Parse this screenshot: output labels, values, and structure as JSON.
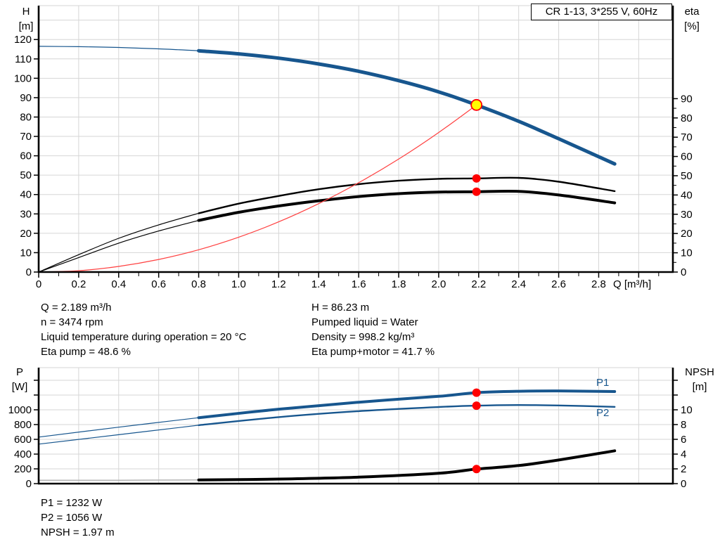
{
  "title_box": "CR 1-13, 3*255 V, 60Hz",
  "labels": {
    "p1": "P1",
    "p2": "P2",
    "q_axis": "Q [m³/h]"
  },
  "axis_titles": {
    "h1": "H",
    "h2": "[m]",
    "eta1": "eta",
    "eta2": "[%]",
    "p1": "P",
    "p2": "[W]",
    "npsh1": "NPSH",
    "npsh2": "[m]"
  },
  "info_top": {
    "left": [
      "Q = 2.189 m³/h",
      "n = 3474 rpm",
      "Liquid temperature during operation = 20 °C",
      "Eta pump = 48.6 %"
    ],
    "right": [
      "H = 86.23 m",
      "Pumped liquid = Water",
      "Density = 998.2 kg/m³",
      "Eta pump+motor = 41.7 %"
    ]
  },
  "info_bottom": [
    "P1 = 1232 W",
    "P2 = 1056 W",
    "NPSH = 1.97 m"
  ],
  "colors": {
    "curve_blue": "#17568e",
    "system_red": "#ff4040",
    "marker_red": "#ff0000",
    "duty_yellow": "#ffff00",
    "curve_black": "#000000",
    "npsh_gray": "#b3b3b3",
    "grid": "#d6d6d6",
    "axis": "#000000"
  },
  "chart_data": [
    {
      "id": "hq",
      "type": "line",
      "title": "CR 1-13, 3*255 V, 60Hz",
      "xlabel": "Q [m³/h]",
      "xlim": [
        0,
        3.171
      ],
      "x_major_step": 0.2,
      "x_minor_step": 0.1,
      "x_grid_max": 3.0,
      "x_tick_max": 3.0,
      "x_minor_max": 3.1,
      "x_labels": [
        [
          0,
          "0"
        ],
        [
          0.2,
          "0.2"
        ],
        [
          0.4,
          "0.4"
        ],
        [
          0.6,
          "0.6"
        ],
        [
          0.8,
          "0.8"
        ],
        [
          1,
          "1.0"
        ],
        [
          1.2,
          "1.2"
        ],
        [
          1.4,
          "1.4"
        ],
        [
          1.6,
          "1.6"
        ],
        [
          1.8,
          "1.8"
        ],
        [
          2,
          "2.0"
        ],
        [
          2.2,
          "2.2"
        ],
        [
          2.4,
          "2.4"
        ],
        [
          2.6,
          "2.6"
        ],
        [
          2.8,
          "2.8"
        ]
      ],
      "left_axis": {
        "title_lines": [
          "H",
          "[m]"
        ],
        "lim": [
          0,
          137.5
        ],
        "grid_step": 10,
        "grid_max": 130,
        "ticks": [
          [
            0,
            "0"
          ],
          [
            10,
            "10"
          ],
          [
            20,
            "20"
          ],
          [
            30,
            "30"
          ],
          [
            40,
            "40"
          ],
          [
            50,
            "50"
          ],
          [
            60,
            "60"
          ],
          [
            70,
            "70"
          ],
          [
            80,
            "80"
          ],
          [
            90,
            "90"
          ],
          [
            100,
            "100"
          ],
          [
            110,
            "110"
          ],
          [
            120,
            "120"
          ]
        ]
      },
      "right_axis": {
        "title_lines": [
          "eta",
          "[%]"
        ],
        "lim": [
          0,
          138.3
        ],
        "minor_step": 5,
        "minor_max": 90,
        "ticks": [
          [
            0,
            "0"
          ],
          [
            10,
            "10"
          ],
          [
            20,
            "20"
          ],
          [
            30,
            "30"
          ],
          [
            40,
            "40"
          ],
          [
            50,
            "50"
          ],
          [
            60,
            "60"
          ],
          [
            70,
            "70"
          ],
          [
            80,
            "80"
          ],
          [
            90,
            "90"
          ]
        ]
      },
      "series": [
        {
          "name": "eta-pump-curve-thin",
          "axis": "right",
          "color": "#000000",
          "width": 1.2,
          "points": [
            [
              0,
              0
            ],
            [
              0.2,
              9
            ],
            [
              0.4,
              17.5
            ],
            [
              0.6,
              24.5
            ],
            [
              0.8,
              30.5
            ]
          ]
        },
        {
          "name": "eta-pump-curve",
          "axis": "right",
          "color": "#000000",
          "width": 2.4,
          "points": [
            [
              0.8,
              30.5
            ],
            [
              1.0,
              35.5
            ],
            [
              1.2,
              39.5
            ],
            [
              1.4,
              43
            ],
            [
              1.6,
              45.6
            ],
            [
              1.8,
              47.4
            ],
            [
              2.0,
              48.4
            ],
            [
              2.189,
              48.6
            ],
            [
              2.4,
              48.9
            ],
            [
              2.6,
              46.9
            ],
            [
              2.88,
              42
            ]
          ]
        },
        {
          "name": "eta-pump-motor-curve-thin",
          "axis": "right",
          "color": "#000000",
          "width": 1.2,
          "points": [
            [
              0,
              0
            ],
            [
              0.2,
              7.5
            ],
            [
              0.4,
              15
            ],
            [
              0.6,
              21.3
            ],
            [
              0.8,
              26.8
            ]
          ]
        },
        {
          "name": "eta-pump-motor-curve",
          "axis": "right",
          "color": "#000000",
          "width": 4,
          "points": [
            [
              0.8,
              26.8
            ],
            [
              1.0,
              31
            ],
            [
              1.2,
              34.3
            ],
            [
              1.4,
              37
            ],
            [
              1.6,
              39.2
            ],
            [
              1.8,
              40.7
            ],
            [
              2.0,
              41.5
            ],
            [
              2.189,
              41.7
            ],
            [
              2.4,
              41.9
            ],
            [
              2.6,
              40
            ],
            [
              2.88,
              35.9
            ]
          ]
        },
        {
          "name": "system-curve",
          "axis": "left",
          "color": "#ff4040",
          "width": 1.2,
          "points": [
            [
              0,
              0
            ],
            [
              0.2,
              0.7
            ],
            [
              0.4,
              2.9
            ],
            [
              0.6,
              6.5
            ],
            [
              0.8,
              11.5
            ],
            [
              1.0,
              18.0
            ],
            [
              1.2,
              25.9
            ],
            [
              1.4,
              35.3
            ],
            [
              1.6,
              46.1
            ],
            [
              1.8,
              58.3
            ],
            [
              2.0,
              72.0
            ],
            [
              2.189,
              86.23
            ]
          ]
        },
        {
          "name": "pump-curve-thin",
          "axis": "left",
          "color": "#17568e",
          "width": 1.2,
          "points": [
            [
              0,
              116.5
            ],
            [
              0.2,
              116.3
            ],
            [
              0.4,
              115.9
            ],
            [
              0.6,
              115.2
            ],
            [
              0.8,
              114.2
            ]
          ]
        },
        {
          "name": "pump-curve",
          "axis": "left",
          "color": "#17568e",
          "width": 5,
          "points": [
            [
              0.8,
              114.2
            ],
            [
              1.0,
              112.6
            ],
            [
              1.2,
              110.4
            ],
            [
              1.4,
              107.4
            ],
            [
              1.6,
              103.6
            ],
            [
              1.8,
              98.8
            ],
            [
              2.0,
              93.0
            ],
            [
              2.189,
              86.23
            ],
            [
              2.4,
              77.8
            ],
            [
              2.6,
              68.8
            ],
            [
              2.88,
              55.8
            ]
          ]
        }
      ],
      "markers": [
        {
          "name": "eta-pump-marker",
          "x": 2.189,
          "y": 48.6,
          "axis": "right",
          "r": 6,
          "fill": "#ff0000",
          "stroke": "none",
          "sw": 0
        },
        {
          "name": "eta-pump-motor-marker",
          "x": 2.189,
          "y": 41.7,
          "axis": "right",
          "r": 6,
          "fill": "#ff0000",
          "stroke": "none",
          "sw": 0
        },
        {
          "name": "duty-point-marker",
          "x": 2.189,
          "y": 86.23,
          "axis": "left",
          "r": 7.5,
          "fill": "#ffff00",
          "stroke": "#ff0000",
          "sw": 1.8
        }
      ],
      "duty_point": {
        "Q_m3h": 2.189,
        "H_m": 86.23,
        "eta_pump_pct": 48.6,
        "eta_pump_motor_pct": 41.7
      }
    },
    {
      "id": "power-npsh",
      "type": "line",
      "xlim": [
        0,
        3.171
      ],
      "x_major_step": 0.2,
      "x_grid_max": 3.0,
      "x_labels": [],
      "left_axis": {
        "title_lines": [
          "P",
          "[W]"
        ],
        "lim": [
          0,
          1571
        ],
        "grid_step": 200,
        "grid_max": 1400,
        "ticks": [
          [
            0,
            "0"
          ],
          [
            200,
            "200"
          ],
          [
            400,
            "400"
          ],
          [
            600,
            "600"
          ],
          [
            800,
            "800"
          ],
          [
            1000,
            "1000"
          ],
          [
            1200,
            null
          ],
          [
            1400,
            null
          ]
        ]
      },
      "right_axis": {
        "title_lines": [
          "NPSH",
          "[m]"
        ],
        "lim": [
          0,
          15.71
        ],
        "ticks": [
          [
            0,
            "0"
          ],
          [
            2,
            "2"
          ],
          [
            4,
            "4"
          ],
          [
            6,
            "6"
          ],
          [
            8,
            "8"
          ],
          [
            10,
            "10"
          ],
          [
            12,
            null
          ],
          [
            14,
            null
          ]
        ]
      },
      "series": [
        {
          "name": "p1-curve-thin",
          "axis": "left",
          "color": "#17568e",
          "width": 1.2,
          "points": [
            [
              0,
              630
            ],
            [
              0.4,
              765
            ],
            [
              0.8,
              893
            ]
          ]
        },
        {
          "name": "p2-curve-thin",
          "axis": "left",
          "color": "#17568e",
          "width": 1.2,
          "points": [
            [
              0,
              535
            ],
            [
              0.4,
              663
            ],
            [
              0.8,
              791
            ]
          ]
        },
        {
          "name": "p2-curve",
          "axis": "left",
          "color": "#17568e",
          "width": 2.4,
          "points": [
            [
              0.8,
              791
            ],
            [
              1.2,
              901
            ],
            [
              1.6,
              982
            ],
            [
              2.0,
              1038
            ],
            [
              2.189,
              1056
            ],
            [
              2.4,
              1064
            ],
            [
              2.6,
              1059
            ],
            [
              2.88,
              1040
            ]
          ]
        },
        {
          "name": "p1-curve",
          "axis": "left",
          "color": "#17568e",
          "width": 4,
          "points": [
            [
              0.8,
              893
            ],
            [
              1.2,
              1008
            ],
            [
              1.6,
              1103
            ],
            [
              2.0,
              1183
            ],
            [
              2.189,
              1232
            ],
            [
              2.4,
              1251
            ],
            [
              2.6,
              1256
            ],
            [
              2.88,
              1247
            ]
          ]
        },
        {
          "name": "npsh-curve-thin",
          "axis": "right",
          "color": "#b3b3b3",
          "width": 1.5,
          "points": [
            [
              0,
              0.45
            ],
            [
              0.4,
              0.46
            ],
            [
              0.8,
              0.5
            ]
          ]
        },
        {
          "name": "npsh-curve",
          "axis": "right",
          "color": "#000000",
          "width": 4,
          "points": [
            [
              0.8,
              0.5
            ],
            [
              1.2,
              0.62
            ],
            [
              1.6,
              0.88
            ],
            [
              2.0,
              1.4
            ],
            [
              2.189,
              1.97
            ],
            [
              2.4,
              2.45
            ],
            [
              2.6,
              3.2
            ],
            [
              2.88,
              4.45
            ]
          ]
        }
      ],
      "markers": [
        {
          "name": "p1-marker",
          "x": 2.189,
          "y": 1232,
          "axis": "left",
          "r": 6,
          "fill": "#ff0000",
          "stroke": "none",
          "sw": 0
        },
        {
          "name": "p2-marker",
          "x": 2.189,
          "y": 1056,
          "axis": "left",
          "r": 6,
          "fill": "#ff0000",
          "stroke": "none",
          "sw": 0
        },
        {
          "name": "npsh-marker",
          "x": 2.189,
          "y": 1.97,
          "axis": "right",
          "r": 6,
          "fill": "#ff0000",
          "stroke": "none",
          "sw": 0
        }
      ],
      "values": {
        "P1_W": 1232,
        "P2_W": 1056,
        "NPSH_m": 1.97
      }
    }
  ]
}
